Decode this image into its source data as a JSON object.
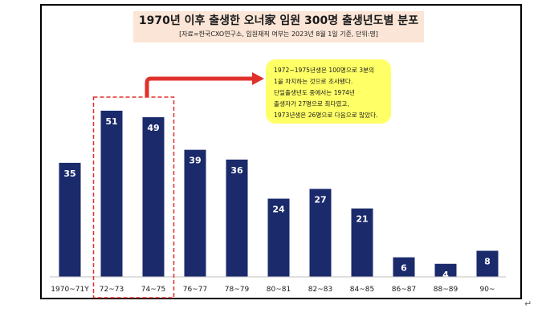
{
  "header": {
    "title": "1970년 이후 출생한 오너家 임원 300명 출생년도별 분포",
    "subtitle": "[자료=한국CXO연구소,  임원재직 여부는 2023년 8월 1일 기준, 단위:명]"
  },
  "callout": {
    "lines": [
      "1972~1975년생은 100명으로 3분의",
      "1을 차지하는 것으로 조사됐다.",
      "단일출생년도 중에서는 1974년",
      "출생자가 27명으로 최다였고,",
      "1973년생은 26명으로 다음으로 많았다."
    ]
  },
  "colors": {
    "bar": "#1b2a6b",
    "bar_label": "#ffffff",
    "highlight_dash": "#e0312c",
    "arrow": "#e0312c",
    "callout_bg": "#ffff66",
    "title_bg": "#fbe5d6"
  },
  "chart_data": {
    "type": "bar",
    "categories": [
      "1970~71Y",
      "72~73",
      "74~75",
      "76~77",
      "78~79",
      "80~81",
      "82~83",
      "84~85",
      "86~87",
      "88~89",
      "90~"
    ],
    "values": [
      35,
      51,
      49,
      39,
      36,
      24,
      27,
      21,
      6,
      4,
      8
    ],
    "title": "1970년 이후 출생한 오너家 임원 300명 출생년도별 분포",
    "subtitle": "[자료=한국CXO연구소,  임원재직 여부는 2023년 8월 1일 기준, 단위:명]",
    "xlabel": "",
    "ylabel": "",
    "ylim": [
      0,
      55
    ],
    "grid": false,
    "highlighted_categories": [
      "72~73",
      "74~75"
    ]
  },
  "decor": {
    "return_mark": "↵"
  }
}
